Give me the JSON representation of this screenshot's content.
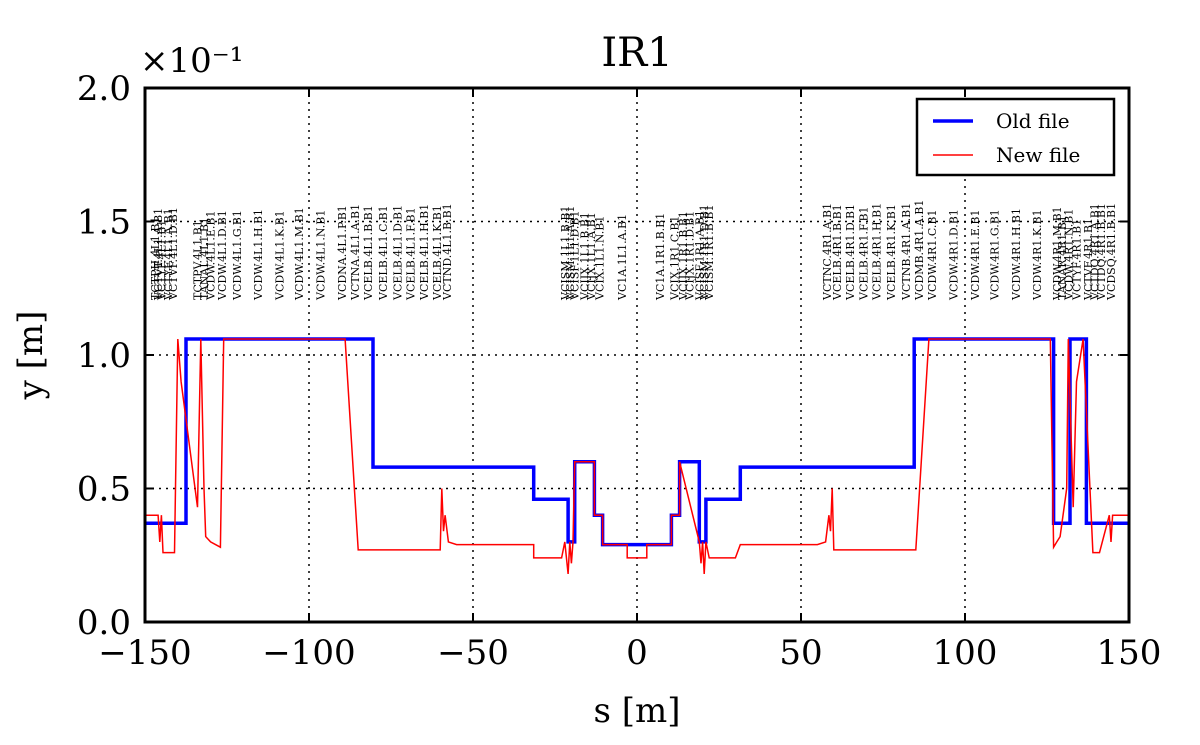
{
  "chart_data": {
    "type": "line",
    "title": "IR1",
    "xlabel": "s [m]",
    "ylabel": "y [m]",
    "y_scale_label": "×10⁻¹",
    "xlim": [
      -150,
      150
    ],
    "ylim": [
      0.0,
      2.0
    ],
    "x_ticks": [
      "−150",
      "−100",
      "−50",
      "0",
      "50",
      "100",
      "150"
    ],
    "x_tick_values": [
      -150,
      -100,
      -50,
      0,
      50,
      100,
      150
    ],
    "y_ticks": [
      "0.0",
      "0.5",
      "1.0",
      "1.5",
      "2.0"
    ],
    "y_tick_values": [
      0.0,
      0.5,
      1.0,
      1.5,
      2.0
    ],
    "grid": true,
    "legend_position": "top-right",
    "series": [
      {
        "name": "Old file",
        "color": "#0000ff",
        "x": [
          -150,
          -137.5,
          -137.5,
          -80.5,
          -80.5,
          -31.5,
          -31.5,
          -21,
          -21,
          -19,
          -19,
          -13,
          -13,
          -10.5,
          -10.5,
          -3,
          -3,
          3,
          3,
          10.5,
          10.5,
          13,
          13,
          19,
          19,
          21,
          21,
          31.5,
          31.5,
          84.5,
          84.5,
          127,
          127,
          132,
          132,
          137,
          137,
          150
        ],
        "y": [
          0.37,
          0.37,
          1.06,
          1.06,
          0.58,
          0.58,
          0.46,
          0.46,
          0.3,
          0.3,
          0.6,
          0.6,
          0.4,
          0.4,
          0.29,
          0.29,
          0.29,
          0.29,
          0.29,
          0.29,
          0.4,
          0.4,
          0.6,
          0.6,
          0.3,
          0.3,
          0.46,
          0.46,
          0.58,
          0.58,
          1.06,
          1.06,
          0.37,
          0.37,
          1.06,
          1.06,
          0.37,
          0.37
        ]
      },
      {
        "name": "New file",
        "color": "#ff0000",
        "x": [
          -150,
          -146,
          -145.5,
          -145,
          -144.5,
          -144,
          -141,
          -140,
          -139,
          -134,
          -133,
          -132,
          -131.5,
          -130,
          -127,
          -126,
          -89,
          -85,
          -60,
          -59.5,
          -59,
          -58.5,
          -57.5,
          -55,
          -31.5,
          -31.5,
          -30,
          -23,
          -22,
          -21,
          -20.5,
          -20,
          -19.5,
          -19,
          -13,
          -13,
          -10.5,
          -10.5,
          -3,
          -3,
          3,
          3,
          10.5,
          10.5,
          13,
          13,
          19,
          19.5,
          20,
          20.5,
          21,
          22,
          23,
          30,
          31.5,
          31.5,
          55,
          57.5,
          58.5,
          59,
          59.5,
          60,
          85,
          89,
          126,
          127,
          128,
          129,
          131,
          131.5,
          133,
          134,
          136,
          139,
          140,
          141,
          144,
          144.5,
          145,
          145.5,
          146,
          150
        ],
        "y": [
          0.4,
          0.4,
          0.3,
          0.4,
          0.26,
          0.26,
          0.26,
          1.06,
          0.9,
          0.43,
          1.06,
          0.5,
          0.32,
          0.3,
          0.28,
          1.06,
          1.06,
          0.27,
          0.27,
          0.5,
          0.34,
          0.4,
          0.3,
          0.29,
          0.29,
          0.24,
          0.24,
          0.24,
          0.3,
          0.18,
          0.3,
          0.22,
          0.3,
          0.6,
          0.6,
          0.4,
          0.4,
          0.29,
          0.29,
          0.24,
          0.24,
          0.29,
          0.29,
          0.4,
          0.4,
          0.6,
          0.3,
          0.22,
          0.3,
          0.18,
          0.3,
          0.24,
          0.24,
          0.24,
          0.29,
          0.29,
          0.29,
          0.3,
          0.4,
          0.34,
          0.5,
          0.27,
          0.27,
          1.06,
          1.06,
          0.28,
          0.3,
          0.32,
          0.5,
          1.06,
          0.43,
          0.9,
          1.06,
          0.26,
          0.26,
          0.26,
          0.4,
          0.3,
          0.4,
          0.4,
          0.4,
          0.4
        ]
      }
    ],
    "annotations": [
      {
        "x": -147.0,
        "text": "TCTPH.4L1.B1"
      },
      {
        "x": -146.0,
        "text": "VCTVT.4L1.A.B1"
      },
      {
        "x": -145.0,
        "text": "VCTYF.4L1.B1"
      },
      {
        "x": -143.0,
        "text": "VCTYF.4L1.A.B1"
      },
      {
        "x": -141.5,
        "text": "VCTVF.4L1.D.B1"
      },
      {
        "x": -134.0,
        "text": "TCTPV.4L1.B1"
      },
      {
        "x": -132.0,
        "text": "TANAL.4L1.B1"
      },
      {
        "x": -130.0,
        "text": "VCDW.4L1.E.B1"
      },
      {
        "x": -126.5,
        "text": "VCDW.4L1.D.B1"
      },
      {
        "x": -122.0,
        "text": "VCDW.4L1.G.B1"
      },
      {
        "x": -115.5,
        "text": "VCDW.4L1.H.B1"
      },
      {
        "x": -109.0,
        "text": "VCDW.4L1.K.B1"
      },
      {
        "x": -103.0,
        "text": "VCDW.4L1.M.B1"
      },
      {
        "x": -96.5,
        "text": "VCDW.4L1.N.B1"
      },
      {
        "x": -90.0,
        "text": "VCDNA.4L1.P.B1"
      },
      {
        "x": -86.0,
        "text": "VCTNA.4L1.A.B1"
      },
      {
        "x": -82.0,
        "text": "VCELB.4L1.B.B1"
      },
      {
        "x": -77.5,
        "text": "VCELB.4L1.C.B1"
      },
      {
        "x": -73.0,
        "text": "VCELB.4L1.D.B1"
      },
      {
        "x": -69.0,
        "text": "VCELB.4L1.F.B1"
      },
      {
        "x": -65.0,
        "text": "VCELB.4L1.H.B1"
      },
      {
        "x": -61.0,
        "text": "VCELB.4L1.K.B1"
      },
      {
        "x": -58.0,
        "text": "VCTND.4L1.B.B1"
      },
      {
        "x": -22.0,
        "text": "VCISM.1L1.B.B1"
      },
      {
        "x": -20.5,
        "text": "VCISM.1L1.A.B1"
      },
      {
        "x": -19.0,
        "text": "VCISF.1L1.D.B1"
      },
      {
        "x": -16.0,
        "text": "VCIJX.1L1.B.B1"
      },
      {
        "x": -14.0,
        "text": "VCIJX.1L1.A.B1"
      },
      {
        "x": -11.5,
        "text": "VCIX.1L1.N.B1"
      },
      {
        "x": -4.5,
        "text": "VC1A.1L1.A.B1"
      },
      {
        "x": 7.0,
        "text": "VC1A.1R1.B.B1"
      },
      {
        "x": 11.5,
        "text": "VCIX.1R1.C.B1"
      },
      {
        "x": 14.0,
        "text": "VCIJX.1R1.B.B1"
      },
      {
        "x": 16.0,
        "text": "VCIJX.1R1.D.B1"
      },
      {
        "x": 19.0,
        "text": "VCISF.1R1.A.B1"
      },
      {
        "x": 20.5,
        "text": "VCISM.1R1.D.B1"
      },
      {
        "x": 22.0,
        "text": "VCISM.1R1.B.B1"
      },
      {
        "x": 58.0,
        "text": "VCTNC.4R1.A.B1"
      },
      {
        "x": 61.0,
        "text": "VCELB.4R1.B.B1"
      },
      {
        "x": 65.0,
        "text": "VCELB.4R1.D.B1"
      },
      {
        "x": 69.0,
        "text": "VCELB.4R1.F.B1"
      },
      {
        "x": 73.0,
        "text": "VCELB.4R1.H.B1"
      },
      {
        "x": 77.5,
        "text": "VCELB.4R1.K.B1"
      },
      {
        "x": 82.0,
        "text": "VCTNB.4R1.A.B1"
      },
      {
        "x": 86.0,
        "text": "VCDMB.4R1.A.B1"
      },
      {
        "x": 90.0,
        "text": "VCDW.4R1.C.B1"
      },
      {
        "x": 96.5,
        "text": "VCDW.4R1.D.B1"
      },
      {
        "x": 103.0,
        "text": "VCDW.4R1.E.B1"
      },
      {
        "x": 109.0,
        "text": "VCDW.4R1.G.B1"
      },
      {
        "x": 115.5,
        "text": "VCDW.4R1.H.B1"
      },
      {
        "x": 122.0,
        "text": "VCDW.4R1.K.B1"
      },
      {
        "x": 128.0,
        "text": "VCDW.4R1.M.B1"
      },
      {
        "x": 129.5,
        "text": "TANAR.4R1.B1"
      },
      {
        "x": 131.5,
        "text": "VCDW.4R1.N.B1"
      },
      {
        "x": 134.0,
        "text": "VCTYF.4R1.B1"
      },
      {
        "x": 137.5,
        "text": "VCTVF.4R1.B1"
      },
      {
        "x": 139.5,
        "text": "VCTDQ.4R1.A.B1"
      },
      {
        "x": 141.5,
        "text": "VCTDQ.4R1.B.B1"
      },
      {
        "x": 144.5,
        "text": "VCDSQ.4R1.B.B1"
      }
    ]
  }
}
